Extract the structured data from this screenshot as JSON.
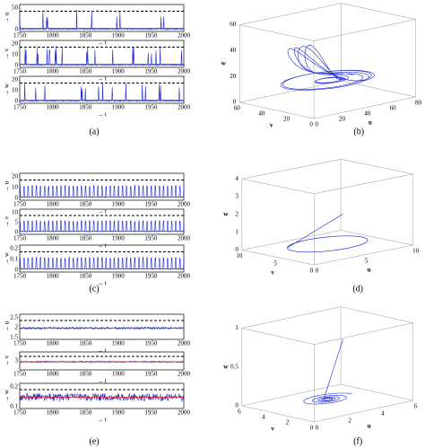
{
  "panels": [
    {
      "label": "(a)",
      "kind": "timeseries",
      "subplots": [
        {
          "ylabel": "→ u",
          "yticks": [
            "0",
            "50"
          ],
          "xticks": [
            "1750",
            "1800",
            "1850",
            "1900",
            "1950",
            "2000"
          ],
          "xlabel": "→ t"
        },
        {
          "ylabel": "→ v",
          "yticks": [
            "0",
            "10",
            "20"
          ],
          "xticks": [
            "1750",
            "1800",
            "1850",
            "1900",
            "1950",
            "2000"
          ],
          "xlabel": "→ t"
        },
        {
          "ylabel": "→ w",
          "yticks": [
            "0",
            "10",
            "20"
          ],
          "xticks": [
            "1750",
            "1800",
            "1850",
            "1900",
            "1950",
            "2000"
          ],
          "xlabel": "→ t"
        }
      ]
    },
    {
      "label": "(b)",
      "kind": "phase3d",
      "zlabel": "w",
      "ulabel": "u",
      "vlabel": "v",
      "zticks": [
        "0",
        "20",
        "40",
        "60"
      ],
      "uticks": [
        "0",
        "20",
        "40",
        "60",
        "80"
      ],
      "vticks": [
        "0",
        "20",
        "40",
        "60"
      ]
    },
    {
      "label": "(c)",
      "kind": "timeseries",
      "subplots": [
        {
          "ylabel": "→ u",
          "yticks": [
            "0",
            "10",
            "20"
          ],
          "xticks": [
            "1750",
            "1800",
            "1850",
            "1900",
            "1950",
            "2000"
          ],
          "xlabel": "→ t"
        },
        {
          "ylabel": "→ v",
          "yticks": [
            "0",
            "5",
            "10"
          ],
          "xticks": [
            "1750",
            "1800",
            "1850",
            "1900",
            "1950",
            "2000"
          ],
          "xlabel": "→ t"
        },
        {
          "ylabel": "→ w",
          "yticks": [
            "0",
            "0.1",
            "0.2"
          ],
          "xticks": [
            "1750",
            "1800",
            "1850",
            "1900",
            "1950",
            "2000"
          ],
          "xlabel": "→ t"
        }
      ]
    },
    {
      "label": "(d)",
      "kind": "phase3d",
      "zlabel": "w",
      "ulabel": "u",
      "vlabel": "v",
      "zticks": [
        "0",
        "1",
        "2",
        "3",
        "4"
      ],
      "uticks": [
        "0",
        "5",
        "10"
      ],
      "vticks": [
        "0",
        "5",
        "10"
      ]
    },
    {
      "label": "(e)",
      "kind": "timeseries",
      "subplots": [
        {
          "ylabel": "→ u",
          "yticks": [
            "1.5",
            "2",
            "2.5"
          ],
          "xticks": [
            "1750",
            "1800",
            "1850",
            "1900",
            "1950",
            "2000"
          ],
          "xlabel": "→ t"
        },
        {
          "ylabel": "→ v",
          "yticks": [
            "3"
          ],
          "xticks": [
            "1750",
            "1800",
            "1850",
            "1900",
            "1950",
            "2000"
          ],
          "xlabel": "→ t"
        },
        {
          "ylabel": "→ w",
          "yticks": [
            "0.1",
            "0.2"
          ],
          "xticks": [
            "1750",
            "1800",
            "1850",
            "1900",
            "1950",
            "2000"
          ],
          "xlabel": "→ t"
        }
      ]
    },
    {
      "label": "(f)",
      "kind": "phase3d",
      "zlabel": "w",
      "ulabel": "u",
      "vlabel": "v",
      "zticks": [
        "0",
        "0.5",
        "1"
      ],
      "uticks": [
        "0",
        "2",
        "4",
        "6"
      ],
      "vticks": [
        "0",
        "2",
        "4",
        "6"
      ]
    }
  ]
}
